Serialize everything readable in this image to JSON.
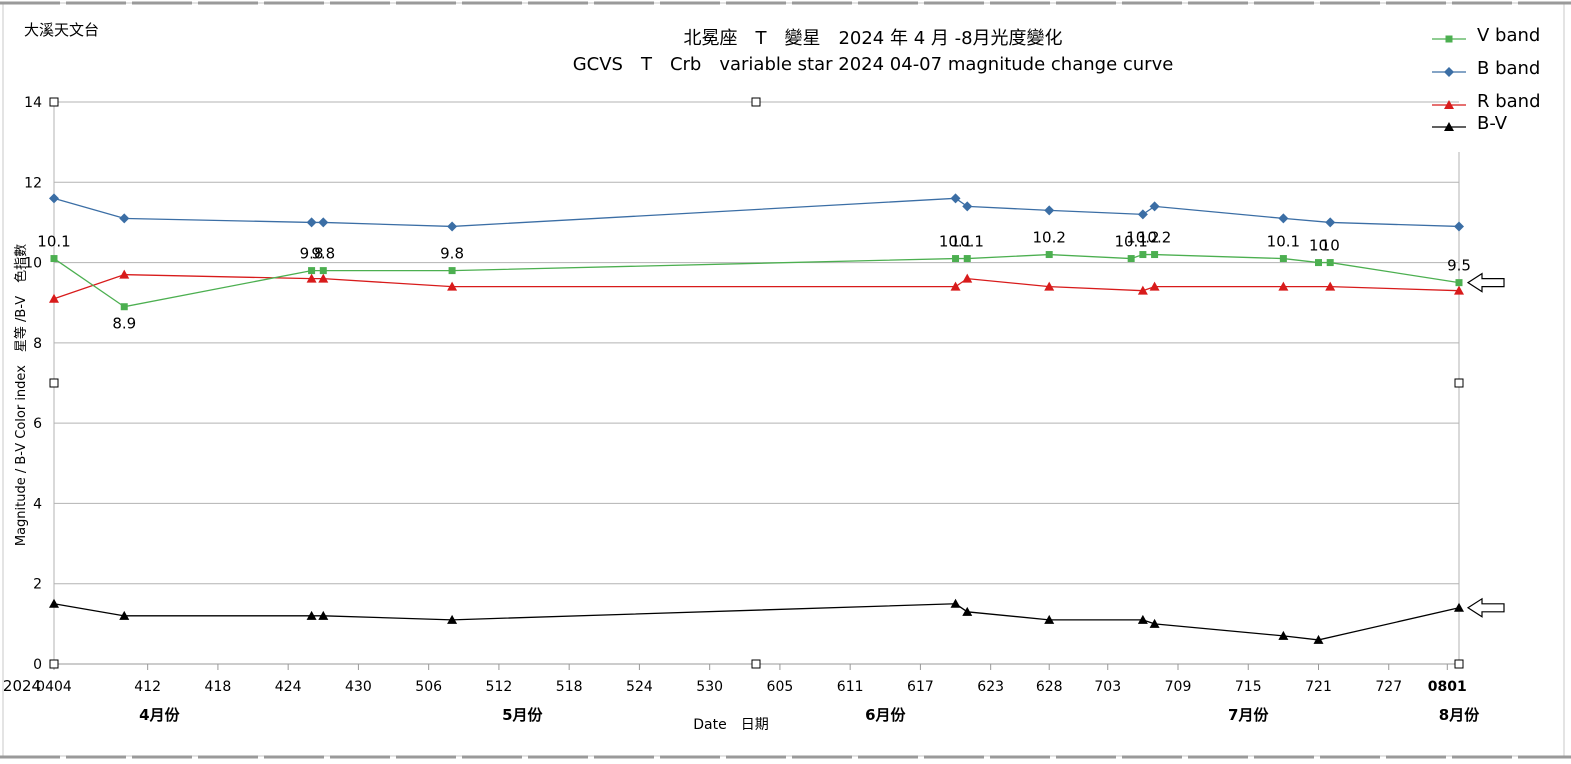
{
  "chart_data": {
    "type": "line",
    "observatory": "大溪天文台",
    "title": "北冕座　T　變星　2024 年 4 月 -8月光度變化",
    "subtitle": "GCVS　T　Crb　variable star 2024 04-07 magnitude change curve",
    "xlabel": "Date　日期",
    "ylabel": "Magnitude / B-V Color index　星等 /B-V　色指數",
    "ylim": [
      0,
      14
    ],
    "y_ticks": [
      "0",
      "2",
      "4",
      "6",
      "8",
      "10",
      "12",
      "14"
    ],
    "x_axis_start_label": "2024",
    "x_ticks": [
      {
        "day": 0,
        "label": "0404"
      },
      {
        "day": 8,
        "label": "412"
      },
      {
        "day": 14,
        "label": "418"
      },
      {
        "day": 20,
        "label": "424"
      },
      {
        "day": 26,
        "label": "430"
      },
      {
        "day": 32,
        "label": "506"
      },
      {
        "day": 38,
        "label": "512"
      },
      {
        "day": 44,
        "label": "518"
      },
      {
        "day": 50,
        "label": "524"
      },
      {
        "day": 56,
        "label": "530"
      },
      {
        "day": 62,
        "label": "605"
      },
      {
        "day": 68,
        "label": "611"
      },
      {
        "day": 74,
        "label": "617"
      },
      {
        "day": 80,
        "label": "623"
      },
      {
        "day": 85,
        "label": "628"
      },
      {
        "day": 90,
        "label": "703"
      },
      {
        "day": 96,
        "label": "709"
      },
      {
        "day": 102,
        "label": "715"
      },
      {
        "day": 108,
        "label": "721"
      },
      {
        "day": 114,
        "label": "727"
      },
      {
        "day": 119,
        "label": "0801"
      }
    ],
    "month_labels": [
      {
        "day": 9,
        "label": "4月份"
      },
      {
        "day": 40,
        "label": "5月份"
      },
      {
        "day": 71,
        "label": "6月份"
      },
      {
        "day": 102,
        "label": "7月份"
      },
      {
        "day": 120,
        "label": "8月份"
      }
    ],
    "x": [
      0,
      6,
      22,
      23,
      34,
      77,
      78,
      85,
      92,
      93,
      94,
      105,
      108,
      109,
      120
    ],
    "series": [
      {
        "name": "V band",
        "color": "#4caf50",
        "marker": "square",
        "values": [
          10.1,
          8.9,
          9.8,
          9.8,
          9.8,
          10.1,
          10.1,
          10.2,
          10.1,
          10.2,
          10.2,
          10.1,
          10.0,
          10.0,
          9.5
        ],
        "labels": [
          "10.1",
          "8.9",
          "9.8",
          "9.8",
          "9.8",
          "10.1",
          "10.1",
          "10.2",
          "10.1",
          "10.2",
          "10.2",
          "10.1",
          "10",
          "10",
          "9.5"
        ]
      },
      {
        "name": "B band",
        "color": "#3b6ea5",
        "marker": "diamond",
        "values": [
          11.6,
          11.1,
          11.0,
          11.0,
          10.9,
          11.6,
          11.4,
          11.3,
          null,
          11.2,
          11.4,
          11.1,
          null,
          11.0,
          10.9
        ]
      },
      {
        "name": "R band",
        "color": "#d81b1b",
        "marker": "triangle",
        "values": [
          9.1,
          9.7,
          9.6,
          9.6,
          9.4,
          9.4,
          9.6,
          9.4,
          null,
          9.3,
          9.4,
          9.4,
          null,
          9.4,
          9.3
        ]
      },
      {
        "name": "B-V",
        "color": "#000000",
        "marker": "triangle",
        "values": [
          1.5,
          1.2,
          1.2,
          1.2,
          1.1,
          1.5,
          1.3,
          1.1,
          null,
          1.1,
          1.0,
          0.7,
          0.6,
          null,
          1.4
        ]
      }
    ],
    "legend_position": "top-right",
    "grid": true,
    "pointer_arrows": [
      9.5,
      1.4
    ]
  }
}
